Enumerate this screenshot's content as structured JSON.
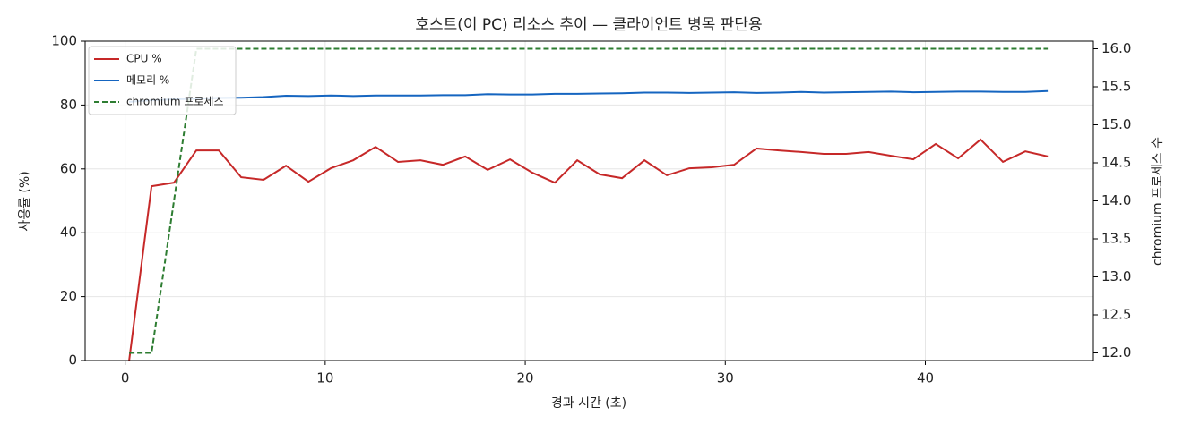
{
  "chart_data": {
    "type": "line",
    "title": "호스트(이 PC) 리소스 추이 — 클라이언트 병목 판단용",
    "xlabel": "경과 시간 (초)",
    "ylabel": "사용률 (%)",
    "y2label": "chromium 프로세스 수",
    "x": [
      0.2,
      1.32,
      2.44,
      3.56,
      4.68,
      5.8,
      6.92,
      8.04,
      9.16,
      10.28,
      11.4,
      12.52,
      13.64,
      14.76,
      15.88,
      17,
      18.12,
      19.24,
      20.36,
      21.48,
      22.6,
      23.72,
      24.84,
      25.96,
      27.08,
      28.2,
      29.32,
      30.44,
      31.56,
      32.68,
      33.8,
      34.92,
      36.04,
      37.16,
      38.28,
      39.4,
      40.52,
      41.64,
      42.76,
      43.88,
      45,
      46.12
    ],
    "series": [
      {
        "name": "CPU %",
        "color": "#c62828",
        "style": "solid",
        "values": [
          0,
          54.6,
          55.7,
          65.8,
          65.8,
          57.4,
          56.6,
          61,
          56,
          60.2,
          62.7,
          66.9,
          62.2,
          62.7,
          61.3,
          63.9,
          59.7,
          63,
          58.8,
          55.7,
          62.7,
          58.3,
          57.1,
          62.7,
          58,
          60.2,
          60.5,
          61.3,
          66.4,
          65.8,
          65.3,
          64.7,
          64.7,
          65.3,
          64.1,
          63,
          67.8,
          63.3,
          69.2,
          62.2,
          65.5,
          63.9
        ]
      },
      {
        "name": "메모리 %",
        "color": "#1565c0",
        "style": "solid",
        "values": [
          81,
          81.5,
          81.8,
          82,
          82.2,
          82.3,
          82.5,
          82.9,
          82.8,
          83,
          82.8,
          83,
          83,
          83,
          83.1,
          83.1,
          83.4,
          83.3,
          83.3,
          83.5,
          83.5,
          83.6,
          83.7,
          83.9,
          83.9,
          83.8,
          83.9,
          84,
          83.8,
          83.9,
          84.1,
          83.9,
          84,
          84.1,
          84.2,
          84,
          84.1,
          84.2,
          84.2,
          84.1,
          84.1,
          84.4
        ]
      },
      {
        "name": "chromium 프로세스",
        "color": "#2e7d32",
        "style": "dashed",
        "axis": "y2",
        "values": [
          12,
          12,
          14,
          16,
          16,
          16,
          16,
          16,
          16,
          16,
          16,
          16,
          16,
          16,
          16,
          16,
          16,
          16,
          16,
          16,
          16,
          16,
          16,
          16,
          16,
          16,
          16,
          16,
          16,
          16,
          16,
          16,
          16,
          16,
          16,
          16,
          16,
          16,
          16,
          16,
          16,
          16
        ]
      }
    ],
    "xlim": [
      -2,
      48.4
    ],
    "xticks": [
      0,
      10,
      20,
      30,
      40
    ],
    "ylim": [
      0,
      100
    ],
    "yticks": [
      0,
      20,
      40,
      60,
      80,
      100
    ],
    "y2lim": [
      11.9,
      16.1
    ],
    "y2ticks": [
      {
        "value": 12,
        "label": "12.0"
      },
      {
        "value": 12.5,
        "label": "12.5"
      },
      {
        "value": 13,
        "label": "13.0"
      },
      {
        "value": 13.5,
        "label": "13.5"
      },
      {
        "value": 14,
        "label": "14.0"
      },
      {
        "value": 14.5,
        "label": "14.5"
      },
      {
        "value": 15,
        "label": "15.0"
      },
      {
        "value": 15.5,
        "label": "15.5"
      },
      {
        "value": 16,
        "label": "16.0"
      }
    ],
    "grid": true,
    "legend": "upper-left"
  }
}
